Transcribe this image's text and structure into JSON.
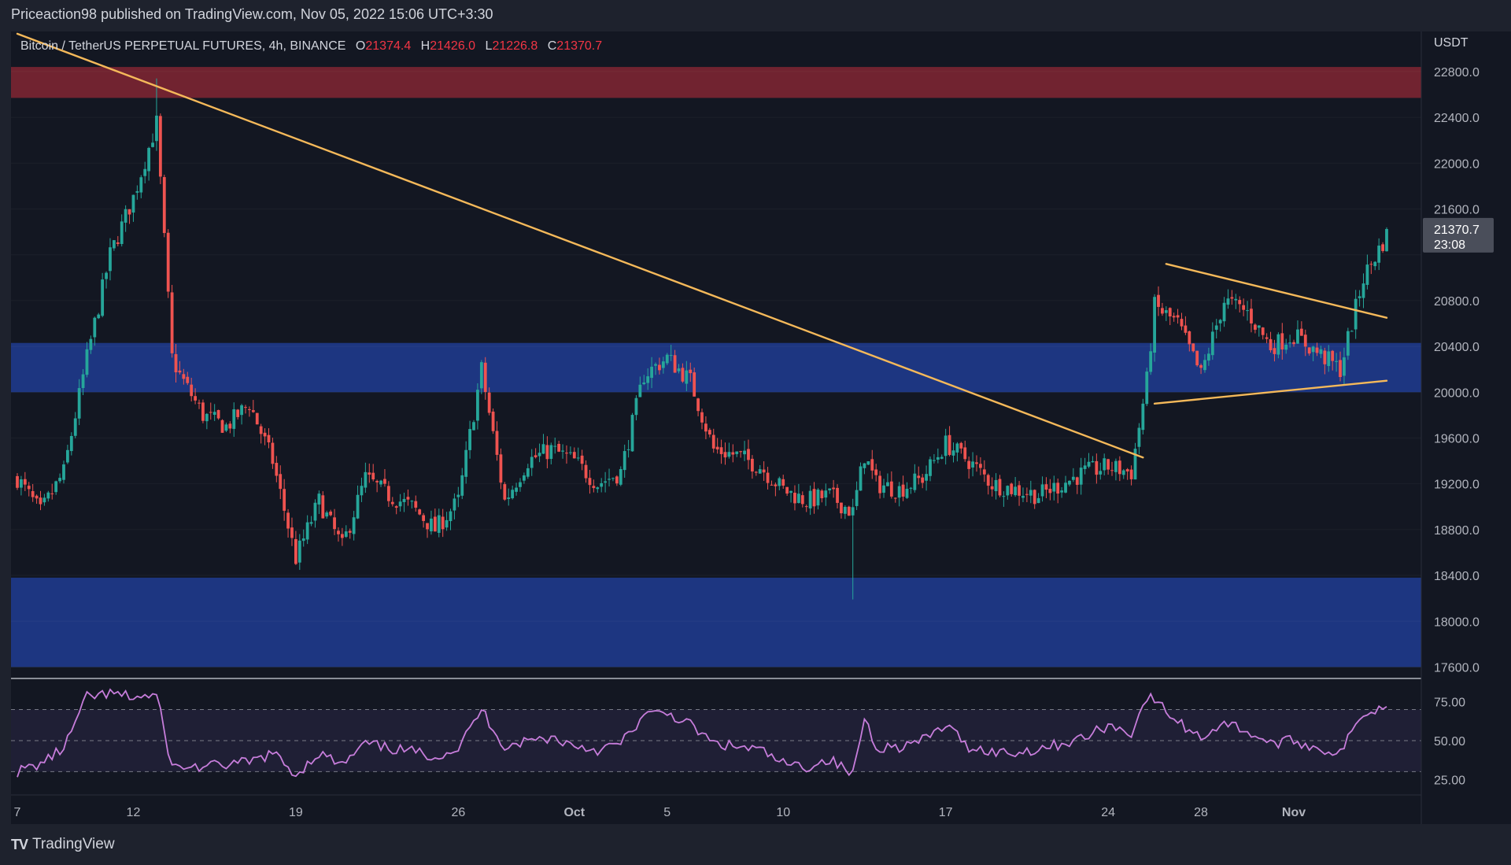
{
  "header": {
    "published": "Priceaction98 published on TradingView.com, Nov 05, 2022 15:06 UTC+3:30"
  },
  "legend": {
    "symbol": "Bitcoin / TetherUS PERPETUAL FUTURES, 4h, BINANCE",
    "open_label": "O",
    "open": "21374.4",
    "high_label": "H",
    "high": "21426.0",
    "low_label": "L",
    "low": "21226.8",
    "close_label": "C",
    "close": "21370.7"
  },
  "price_axis": {
    "unit": "USDT",
    "last_price": "21370.7",
    "countdown": "23:08"
  },
  "brand": {
    "name": "TradingView"
  },
  "colors": {
    "background": "#131722",
    "panel": "#1e222d",
    "up": "#26a69a",
    "down": "#ef5350",
    "trendline": "#f5b95a",
    "resistance_zone": "#7a2532",
    "support_zone": "#1e3a8a",
    "rsi": "#c77ddb"
  },
  "chart_data": [
    {
      "type": "candlestick",
      "title": "Bitcoin / TetherUS PERPETUAL FUTURES, 4h, BINANCE",
      "ylim": [
        17500,
        23150
      ],
      "y_ticks": [
        17600,
        18000,
        18400,
        18800,
        19200,
        19600,
        20000,
        20400,
        20800,
        21200,
        21600,
        22000,
        22400,
        22800
      ],
      "y_tick_labels": [
        "17600.0",
        "18000.0",
        "18400.0",
        "18800.0",
        "19200.0",
        "19600.0",
        "20000.0",
        "20400.0",
        "20800.0",
        "",
        "21600.0",
        "22000.0",
        "22400.0",
        "22800.0"
      ],
      "x_tick_labels": [
        "7",
        "12",
        "19",
        "26",
        "Oct",
        "5",
        "10",
        "17",
        "24",
        "28",
        "Nov"
      ],
      "x_tick_dates": [
        "2022-09-07",
        "2022-09-12",
        "2022-09-19",
        "2022-09-26",
        "2022-10-01",
        "2022-10-05",
        "2022-10-10",
        "2022-10-17",
        "2022-10-24",
        "2022-10-28",
        "2022-11-01"
      ],
      "date_range": [
        "2022-09-07",
        "2022-11-05"
      ],
      "zones": [
        {
          "name": "resistance",
          "from": 22570,
          "to": 22840
        },
        {
          "name": "support-upper",
          "from": 20000,
          "to": 20430
        },
        {
          "name": "support-lower",
          "from": 17600,
          "to": 18380
        }
      ],
      "trendlines": [
        {
          "name": "descending-trendline",
          "points": [
            [
              "2022-09-07",
              23130
            ],
            [
              "2022-10-25T12:00",
              19430
            ]
          ]
        },
        {
          "name": "pennant-upper",
          "points": [
            [
              "2022-10-26T12:00",
              21120
            ],
            [
              "2022-11-05",
              20650
            ]
          ]
        },
        {
          "name": "pennant-lower",
          "points": [
            [
              "2022-10-26T00:00",
              19900
            ],
            [
              "2022-11-05",
              20100
            ]
          ]
        }
      ],
      "close_path": [
        [
          "2022-09-07",
          19250
        ],
        [
          "2022-09-08",
          18950
        ],
        [
          "2022-09-09",
          19300
        ],
        [
          "2022-09-10",
          20300
        ],
        [
          "2022-09-11",
          21200
        ],
        [
          "2022-09-12",
          21700
        ],
        [
          "2022-09-13",
          22350
        ],
        [
          "2022-09-13T16:00",
          20300
        ],
        [
          "2022-09-14",
          20150
        ],
        [
          "2022-09-15",
          19800
        ],
        [
          "2022-09-16",
          19700
        ],
        [
          "2022-09-17",
          19900
        ],
        [
          "2022-09-18",
          19400
        ],
        [
          "2022-09-19",
          18550
        ],
        [
          "2022-09-20",
          19050
        ],
        [
          "2022-09-21",
          18650
        ],
        [
          "2022-09-22",
          19250
        ],
        [
          "2022-09-23",
          19100
        ],
        [
          "2022-09-24",
          19000
        ],
        [
          "2022-09-25",
          18800
        ],
        [
          "2022-09-26",
          19050
        ],
        [
          "2022-09-27",
          20200
        ],
        [
          "2022-09-28",
          19050
        ],
        [
          "2022-09-29",
          19400
        ],
        [
          "2022-09-30",
          19500
        ],
        [
          "2022-10-01",
          19400
        ],
        [
          "2022-10-02",
          19200
        ],
        [
          "2022-10-03",
          19300
        ],
        [
          "2022-10-04",
          20150
        ],
        [
          "2022-10-05",
          20300
        ],
        [
          "2022-10-06",
          20100
        ],
        [
          "2022-10-07",
          19500
        ],
        [
          "2022-10-08",
          19450
        ],
        [
          "2022-10-09",
          19350
        ],
        [
          "2022-10-10",
          19150
        ],
        [
          "2022-10-11",
          19050
        ],
        [
          "2022-10-12",
          19100
        ],
        [
          "2022-10-13",
          18950
        ],
        [
          "2022-10-13T12:00",
          19450
        ],
        [
          "2022-10-14",
          19200
        ],
        [
          "2022-10-15",
          19150
        ],
        [
          "2022-10-16",
          19250
        ],
        [
          "2022-10-17",
          19550
        ],
        [
          "2022-10-18",
          19400
        ],
        [
          "2022-10-19",
          19200
        ],
        [
          "2022-10-20",
          19150
        ],
        [
          "2022-10-21",
          19100
        ],
        [
          "2022-10-22",
          19200
        ],
        [
          "2022-10-23",
          19300
        ],
        [
          "2022-10-24",
          19350
        ],
        [
          "2022-10-25",
          19300
        ],
        [
          "2022-10-25T16:00",
          20100
        ],
        [
          "2022-10-26",
          20750
        ],
        [
          "2022-10-27",
          20600
        ],
        [
          "2022-10-28",
          20150
        ],
        [
          "2022-10-29",
          20800
        ],
        [
          "2022-10-30",
          20700
        ],
        [
          "2022-10-31",
          20400
        ],
        [
          "2022-11-01",
          20500
        ],
        [
          "2022-11-02",
          20350
        ],
        [
          "2022-11-03",
          20200
        ],
        [
          "2022-11-04",
          21000
        ],
        [
          "2022-11-05",
          21371
        ]
      ],
      "wick_extremes": {
        "high": {
          "date": "2022-09-13",
          "value": 22740
        },
        "low": {
          "date": "2022-10-13",
          "value": 18190
        }
      }
    },
    {
      "type": "line",
      "name": "RSI",
      "ylim": [
        15,
        88
      ],
      "y_ticks": [
        25,
        50,
        75
      ],
      "y_tick_labels": [
        "25.00",
        "50.00",
        "75.00"
      ],
      "bands": [
        30,
        50,
        70
      ],
      "series": [
        {
          "values": [
            [
              "2022-09-07",
              30
            ],
            [
              "2022-09-08",
              35
            ],
            [
              "2022-09-09",
              45
            ],
            [
              "2022-09-10",
              78
            ],
            [
              "2022-09-11",
              80
            ],
            [
              "2022-09-12",
              78
            ],
            [
              "2022-09-13",
              79
            ],
            [
              "2022-09-13T16:00",
              33
            ],
            [
              "2022-09-15",
              33
            ],
            [
              "2022-09-17",
              36
            ],
            [
              "2022-09-18",
              42
            ],
            [
              "2022-09-19",
              28
            ],
            [
              "2022-09-20",
              42
            ],
            [
              "2022-09-21",
              34
            ],
            [
              "2022-09-22",
              48
            ],
            [
              "2022-09-23",
              45
            ],
            [
              "2022-09-24",
              43
            ],
            [
              "2022-09-25",
              40
            ],
            [
              "2022-09-26",
              45
            ],
            [
              "2022-09-27",
              70
            ],
            [
              "2022-09-28",
              46
            ],
            [
              "2022-09-29",
              50
            ],
            [
              "2022-09-30",
              52
            ],
            [
              "2022-10-01",
              47
            ],
            [
              "2022-10-02",
              44
            ],
            [
              "2022-10-03",
              48
            ],
            [
              "2022-10-04",
              66
            ],
            [
              "2022-10-05",
              68
            ],
            [
              "2022-10-06",
              60
            ],
            [
              "2022-10-07",
              48
            ],
            [
              "2022-10-08",
              46
            ],
            [
              "2022-10-09",
              44
            ],
            [
              "2022-10-10",
              35
            ],
            [
              "2022-10-11",
              33
            ],
            [
              "2022-10-12",
              38
            ],
            [
              "2022-10-13",
              28
            ],
            [
              "2022-10-13T12:00",
              65
            ],
            [
              "2022-10-14",
              46
            ],
            [
              "2022-10-15",
              46
            ],
            [
              "2022-10-16",
              50
            ],
            [
              "2022-10-17",
              60
            ],
            [
              "2022-10-18",
              46
            ],
            [
              "2022-10-19",
              43
            ],
            [
              "2022-10-20",
              42
            ],
            [
              "2022-10-21",
              45
            ],
            [
              "2022-10-22",
              48
            ],
            [
              "2022-10-23",
              52
            ],
            [
              "2022-10-24",
              60
            ],
            [
              "2022-10-25",
              55
            ],
            [
              "2022-10-25T16:00",
              78
            ],
            [
              "2022-10-26",
              76
            ],
            [
              "2022-10-27",
              62
            ],
            [
              "2022-10-28",
              52
            ],
            [
              "2022-10-29",
              62
            ],
            [
              "2022-10-30",
              56
            ],
            [
              "2022-10-31",
              48
            ],
            [
              "2022-11-01",
              50
            ],
            [
              "2022-11-02",
              45
            ],
            [
              "2022-11-03",
              42
            ],
            [
              "2022-11-04",
              68
            ],
            [
              "2022-11-05",
              72
            ]
          ]
        }
      ]
    }
  ]
}
